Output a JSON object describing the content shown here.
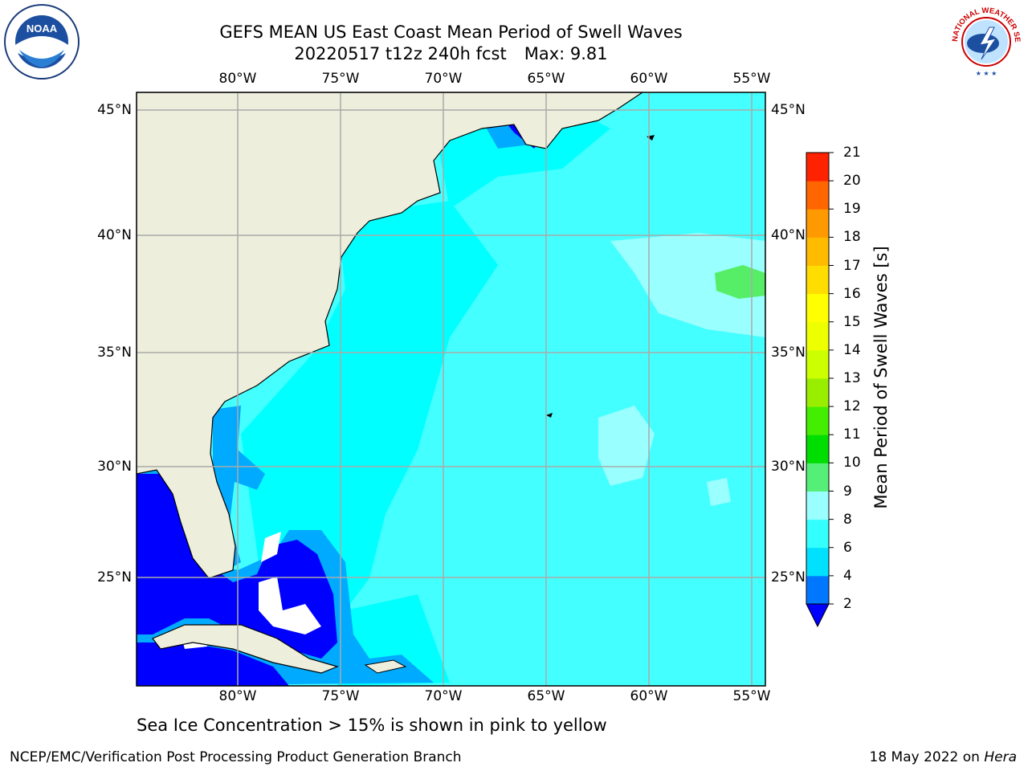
{
  "title": {
    "line1": "GEFS MEAN US East Coast Mean Period of Swell Waves",
    "date": "20220517 t12z 240h fcst",
    "max": "Max: 9.81"
  },
  "map": {
    "lon_labels": [
      "80°W",
      "75°W",
      "70°W",
      "65°W",
      "60°W",
      "55°W"
    ],
    "lat_labels": [
      "45°N",
      "40°N",
      "35°N",
      "30°N",
      "25°N"
    ],
    "lon_range": [
      -85,
      -54.5
    ],
    "lat_range": [
      20.5,
      46
    ],
    "land_color": "#eeeedd",
    "water_colors": {
      "2-4": "#0000ff",
      "4-6": "#00aaff",
      "6-8": "#00ffff",
      "8-9": "#44ffff",
      "9-10": "#99ffff",
      "10-11": "#55ee66"
    }
  },
  "colorbar": {
    "title": "Mean Period of Swell Waves [s]",
    "tick_labels": [
      "2",
      "4",
      "6",
      "8",
      "9",
      "10",
      "11",
      "12",
      "13",
      "14",
      "15",
      "16",
      "17",
      "18",
      "19",
      "20",
      "21"
    ],
    "colors": [
      "#0077ff",
      "#00e0ff",
      "#33ffff",
      "#99ffff",
      "#55ee77",
      "#00dd00",
      "#44ee00",
      "#99ee00",
      "#ccff00",
      "#eeff00",
      "#ffff00",
      "#ffdd00",
      "#ffbb00",
      "#ff9900",
      "#ff6600",
      "#ff2200"
    ],
    "extend_color": "#0000ff"
  },
  "note": "Sea Ice Concentration > 15% is shown in pink to yellow",
  "footer": {
    "left": "NCEP/EMC/Verification Post Processing Product Generation Branch",
    "right_date": "18 May 2022 on",
    "right_machine": "Hera"
  },
  "logos": {
    "noaa": "NOAA",
    "nws": "NATIONAL WEATHER SERVICE"
  }
}
